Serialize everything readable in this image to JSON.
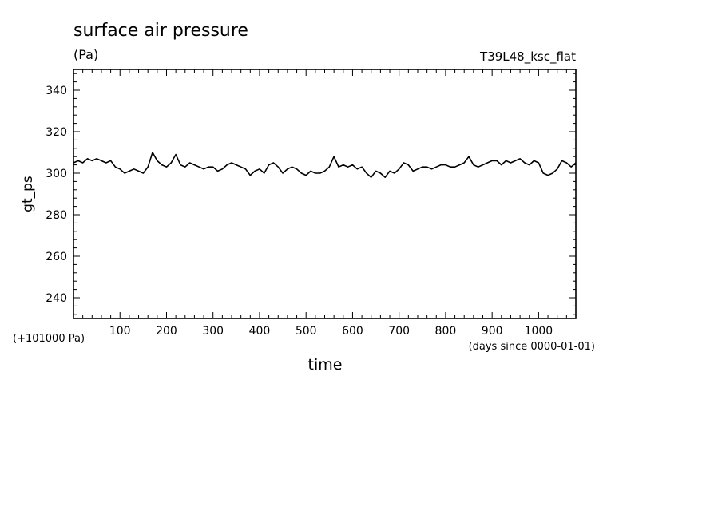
{
  "chart_data": {
    "type": "line",
    "title": "surface air pressure",
    "units": "(Pa)",
    "run_label": "T39L48_ksc_flat",
    "ylabel": "gt_ps",
    "xlabel": "time",
    "y_offset_note": "(+101000 Pa)",
    "x_unit_note": "(days since 0000-01-01)",
    "xlim": [
      0,
      1080
    ],
    "ylim": [
      230,
      350
    ],
    "x_ticks": [
      100,
      200,
      300,
      400,
      500,
      600,
      700,
      800,
      900,
      1000
    ],
    "y_ticks": [
      240,
      260,
      280,
      300,
      320,
      340
    ],
    "x_tick_labels": [
      "100",
      "200",
      "300",
      "400",
      "500",
      "600",
      "700",
      "800",
      "900",
      "1000"
    ],
    "y_tick_labels": [
      "240",
      "260",
      "280",
      "300",
      "320",
      "340"
    ],
    "grid": false,
    "series": [
      {
        "name": "",
        "x": [
          0,
          10,
          20,
          30,
          40,
          50,
          60,
          70,
          80,
          90,
          100,
          110,
          120,
          130,
          140,
          150,
          160,
          170,
          180,
          190,
          200,
          210,
          220,
          230,
          240,
          250,
          260,
          270,
          280,
          290,
          300,
          310,
          320,
          330,
          340,
          350,
          360,
          370,
          380,
          390,
          400,
          410,
          420,
          430,
          440,
          450,
          460,
          470,
          480,
          490,
          500,
          510,
          520,
          530,
          540,
          550,
          560,
          570,
          580,
          590,
          600,
          610,
          620,
          630,
          640,
          650,
          660,
          670,
          680,
          690,
          700,
          710,
          720,
          730,
          740,
          750,
          760,
          770,
          780,
          790,
          800,
          810,
          820,
          830,
          840,
          850,
          860,
          870,
          880,
          890,
          900,
          910,
          920,
          930,
          940,
          950,
          960,
          970,
          980,
          990,
          1000,
          1010,
          1020,
          1030,
          1040,
          1050,
          1060,
          1070,
          1080
        ],
        "values": [
          305,
          306,
          305,
          307,
          306,
          307,
          306,
          305,
          306,
          303,
          302,
          300,
          301,
          302,
          301,
          300,
          303,
          310,
          306,
          304,
          303,
          305,
          309,
          304,
          303,
          305,
          304,
          303,
          302,
          303,
          303,
          301,
          302,
          304,
          305,
          304,
          303,
          302,
          299,
          301,
          302,
          300,
          304,
          305,
          303,
          300,
          302,
          303,
          302,
          300,
          299,
          301,
          300,
          300,
          301,
          303,
          308,
          303,
          304,
          303,
          304,
          302,
          303,
          300,
          298,
          301,
          300,
          298,
          301,
          300,
          302,
          305,
          304,
          301,
          302,
          303,
          303,
          302,
          303,
          304,
          304,
          303,
          303,
          304,
          305,
          308,
          304,
          303,
          304,
          305,
          306,
          306,
          304,
          306,
          305,
          306,
          307,
          305,
          304,
          306,
          305,
          300,
          299,
          300,
          302,
          306,
          305,
          303,
          305
        ]
      }
    ]
  }
}
